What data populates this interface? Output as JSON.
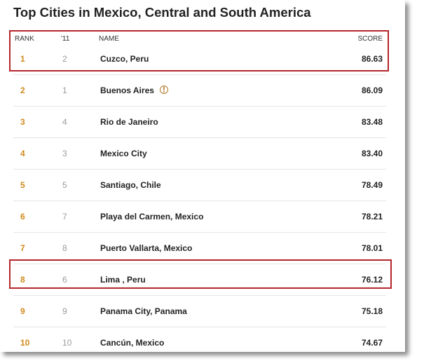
{
  "title": "Top Cities in Mexico, Central and South America",
  "columns": {
    "rank": "RANK",
    "prev": "'11",
    "name": "NAME",
    "score": "SCORE"
  },
  "rows": [
    {
      "rank": "1",
      "prev": "2",
      "name": "Cuzco, Peru",
      "score": "86.63"
    },
    {
      "rank": "2",
      "prev": "1",
      "name": "Buenos Aires",
      "score": "86.09",
      "badge": "!"
    },
    {
      "rank": "3",
      "prev": "4",
      "name": "Rio de Janeiro",
      "score": "83.48"
    },
    {
      "rank": "4",
      "prev": "3",
      "name": "Mexico City",
      "score": "83.40"
    },
    {
      "rank": "5",
      "prev": "5",
      "name": "Santiago, Chile",
      "score": "78.49"
    },
    {
      "rank": "6",
      "prev": "7",
      "name": "Playa del Carmen, Mexico",
      "score": "78.21"
    },
    {
      "rank": "7",
      "prev": "8",
      "name": "Puerto Vallarta, Mexico",
      "score": "78.01"
    },
    {
      "rank": "8",
      "prev": "6",
      "name": "Lima , Peru",
      "score": "76.12"
    },
    {
      "rank": "9",
      "prev": "9",
      "name": "Panama City, Panama",
      "score": "75.18"
    },
    {
      "rank": "10",
      "prev": "10",
      "name": "Cancún, Mexico",
      "score": "74.67"
    }
  ],
  "colors": {
    "rank": "#d08a1c",
    "highlight": "#b5262a",
    "badge": "#b07a2a"
  },
  "icons": {
    "badge": "info-circle-icon"
  }
}
